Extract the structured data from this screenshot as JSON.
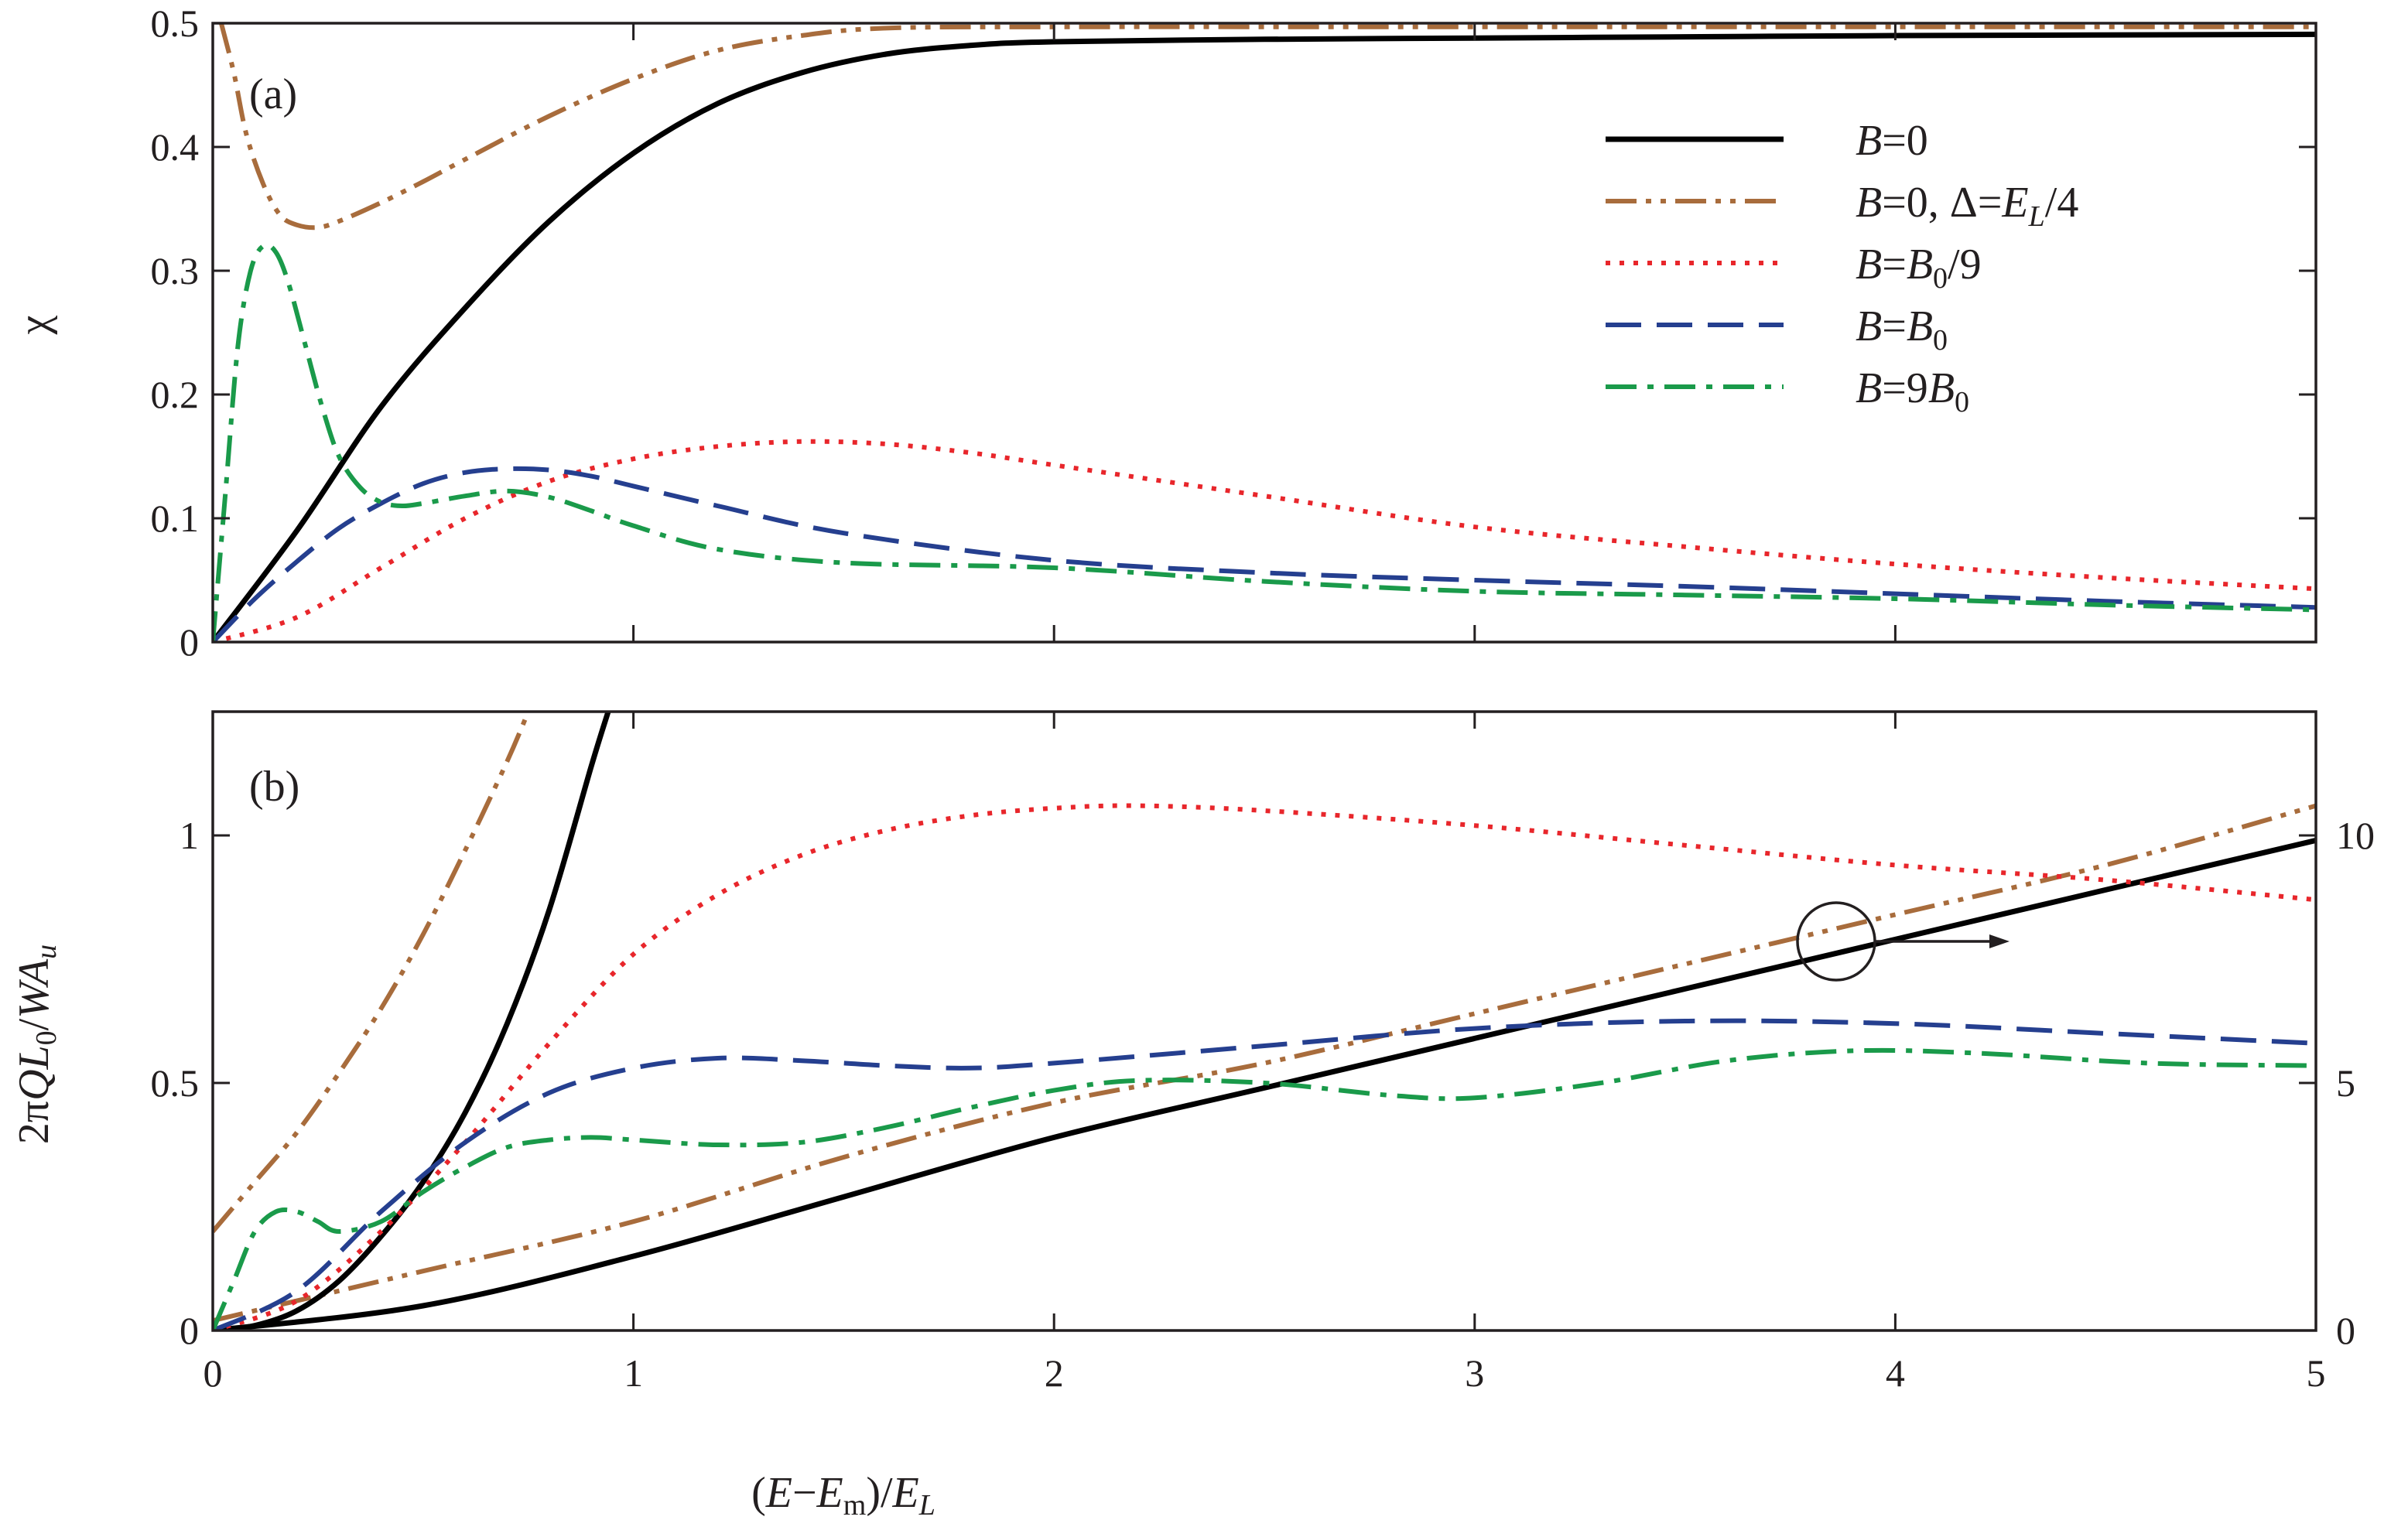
{
  "chart_data": [
    {
      "id": "a",
      "type": "line",
      "panel_label": "(a)",
      "xlabel": "(E−E_m)/E_L",
      "ylabel": "χ",
      "xlim": [
        0,
        5
      ],
      "ylim": [
        0,
        0.5
      ],
      "xticks": [
        0,
        1,
        2,
        3,
        4,
        5
      ],
      "yticks": [
        0,
        0.1,
        0.2,
        0.3,
        0.4,
        0.5
      ],
      "ytick_labels": [
        "0",
        "0.1",
        "0.2",
        "0.3",
        "0.4",
        "0.5"
      ],
      "legend_position": "top-right",
      "series": [
        {
          "name": "B=0",
          "legend": {
            "t1": "B",
            "t2": "=0"
          },
          "color": "#000000",
          "style": "solid",
          "x": [
            0,
            0.2,
            0.4,
            0.6,
            0.8,
            1.0,
            1.2,
            1.4,
            1.6,
            1.8,
            2.0,
            2.5,
            3.0,
            3.5,
            4.0,
            5.0
          ],
          "y": [
            0,
            0.09,
            0.19,
            0.27,
            0.34,
            0.395,
            0.435,
            0.46,
            0.475,
            0.482,
            0.485,
            0.487,
            0.488,
            0.489,
            0.49,
            0.491
          ]
        },
        {
          "name": "B=0, Δ=E_L/4",
          "legend": {
            "t1": "B",
            "t2": "=0, Δ=",
            "t3": "E",
            "t4": "L",
            "t5": "/4"
          },
          "color": "#a86c3c",
          "style": "dashdotdot",
          "x": [
            0.02,
            0.05,
            0.08,
            0.12,
            0.16,
            0.2,
            0.25,
            0.3,
            0.4,
            0.5,
            0.6,
            0.8,
            1.0,
            1.2,
            1.4,
            1.6,
            2.0,
            3.0,
            4.0,
            5.0
          ],
          "y": [
            0.5,
            0.46,
            0.41,
            0.37,
            0.345,
            0.337,
            0.335,
            0.34,
            0.355,
            0.372,
            0.39,
            0.425,
            0.455,
            0.478,
            0.49,
            0.496,
            0.497,
            0.497,
            0.497,
            0.497
          ]
        },
        {
          "name": "B=B_0/9",
          "legend": {
            "t1": "B",
            "t2": "=",
            "t3": "B",
            "t4": "0",
            "t5": "/9"
          },
          "color": "#e8262b",
          "style": "dotted",
          "x": [
            0,
            0.2,
            0.4,
            0.6,
            0.8,
            1.0,
            1.2,
            1.4,
            1.6,
            1.8,
            2.0,
            2.5,
            3.0,
            3.5,
            4.0,
            4.5,
            5.0
          ],
          "y": [
            0,
            0.02,
            0.06,
            0.1,
            0.13,
            0.148,
            0.158,
            0.162,
            0.16,
            0.153,
            0.143,
            0.118,
            0.093,
            0.077,
            0.063,
            0.052,
            0.043
          ]
        },
        {
          "name": "B=B_0",
          "legend": {
            "t1": "B",
            "t2": "=",
            "t3": "B",
            "t4": "0",
            "t5": ""
          },
          "color": "#253f8f",
          "style": "dashed",
          "x": [
            0,
            0.1,
            0.2,
            0.3,
            0.4,
            0.5,
            0.6,
            0.7,
            0.8,
            0.9,
            1.0,
            1.2,
            1.5,
            2.0,
            2.5,
            3.0,
            3.5,
            4.0,
            4.5,
            5.0
          ],
          "y": [
            0,
            0.035,
            0.065,
            0.092,
            0.112,
            0.128,
            0.137,
            0.14,
            0.139,
            0.134,
            0.126,
            0.11,
            0.088,
            0.066,
            0.056,
            0.05,
            0.045,
            0.039,
            0.033,
            0.028
          ]
        },
        {
          "name": "B=9B_0",
          "legend": {
            "t1": "B",
            "t2": "=9",
            "t3": "B",
            "t4": "0",
            "t5": ""
          },
          "color": "#1a9a4a",
          "style": "dashdot",
          "x": [
            0,
            0.03,
            0.06,
            0.09,
            0.12,
            0.15,
            0.18,
            0.22,
            0.26,
            0.3,
            0.35,
            0.4,
            0.45,
            0.5,
            0.6,
            0.7,
            0.8,
            0.9,
            1.0,
            1.2,
            1.5,
            2.0,
            2.5,
            3.0,
            3.5,
            4.0,
            4.5,
            5.0
          ],
          "y": [
            0,
            0.12,
            0.24,
            0.3,
            0.32,
            0.315,
            0.29,
            0.24,
            0.19,
            0.15,
            0.125,
            0.113,
            0.11,
            0.112,
            0.118,
            0.122,
            0.117,
            0.106,
            0.094,
            0.075,
            0.064,
            0.06,
            0.049,
            0.041,
            0.038,
            0.035,
            0.03,
            0.026
          ]
        }
      ]
    },
    {
      "id": "b",
      "type": "line",
      "panel_label": "(b)",
      "xlabel": "(E−E_m)/E_L",
      "ylabel": "2πQL_0/WA_u",
      "xlim": [
        0,
        5
      ],
      "ylim": [
        0,
        1.25
      ],
      "xticks": [
        0,
        1,
        2,
        3,
        4,
        5
      ],
      "yticks": [
        0,
        0.5,
        1
      ],
      "ytick_labels": [
        "0",
        "0.5",
        "1"
      ],
      "y2lim": [
        0,
        12.5
      ],
      "y2ticks": [
        0,
        5,
        10
      ],
      "y2tick_labels": [
        "0",
        "5",
        "10"
      ],
      "annotation": "circle with arrow: B=0 and B=0, Δ=E_L/4 curves read on right axis",
      "series": [
        {
          "name": "B=0",
          "axis": "right",
          "color": "#000000",
          "style": "solid",
          "x": [
            0,
            0.5,
            1.0,
            1.5,
            2.0,
            2.5,
            3.0,
            3.5,
            4.0,
            4.5,
            5.0
          ],
          "y": [
            0,
            0.5,
            1.5,
            2.7,
            3.9,
            4.9,
            5.9,
            6.9,
            7.9,
            8.9,
            9.9
          ]
        },
        {
          "name": "B=0, Δ=E_L/4",
          "axis": "right",
          "color": "#a86c3c",
          "style": "dashdotdot",
          "x": [
            0,
            0.5,
            1.0,
            1.5,
            2.0,
            2.5,
            3.0,
            3.5,
            4.0,
            4.5,
            5.0
          ],
          "y": [
            0.2,
            1.2,
            2.2,
            3.5,
            4.6,
            5.4,
            6.4,
            7.4,
            8.4,
            9.4,
            10.6
          ]
        },
        {
          "name": "B=0 (left)",
          "axis": "left",
          "color": "#000000",
          "style": "solid",
          "x": [
            0,
            0.1,
            0.2,
            0.3,
            0.4,
            0.5,
            0.6,
            0.7,
            0.8,
            0.9,
            0.94
          ],
          "y": [
            0,
            0.01,
            0.04,
            0.1,
            0.19,
            0.3,
            0.44,
            0.62,
            0.85,
            1.14,
            1.25
          ]
        },
        {
          "name": "B=0, Δ=E_L/4 (left)",
          "axis": "left",
          "color": "#a86c3c",
          "style": "dashdotdot",
          "x": [
            0,
            0.1,
            0.2,
            0.3,
            0.4,
            0.5,
            0.6,
            0.7,
            0.75
          ],
          "y": [
            0.2,
            0.3,
            0.4,
            0.52,
            0.65,
            0.8,
            0.97,
            1.15,
            1.25
          ]
        },
        {
          "name": "B=B_0/9",
          "axis": "left",
          "color": "#e8262b",
          "style": "dotted",
          "x": [
            0,
            0.2,
            0.4,
            0.6,
            0.8,
            1.0,
            1.2,
            1.4,
            1.6,
            1.8,
            2.0,
            2.2,
            2.5,
            3.0,
            3.5,
            4.0,
            4.5,
            5.0
          ],
          "y": [
            0,
            0.06,
            0.2,
            0.38,
            0.58,
            0.76,
            0.88,
            0.96,
            1.01,
            1.04,
            1.055,
            1.06,
            1.05,
            1.02,
            0.98,
            0.94,
            0.91,
            0.87
          ]
        },
        {
          "name": "B=B_0",
          "axis": "left",
          "color": "#253f8f",
          "style": "dashed",
          "x": [
            0,
            0.2,
            0.4,
            0.6,
            0.8,
            1.0,
            1.2,
            1.4,
            1.6,
            1.8,
            2.0,
            2.5,
            3.0,
            3.5,
            4.0,
            4.5,
            5.0
          ],
          "y": [
            0,
            0.08,
            0.24,
            0.38,
            0.48,
            0.53,
            0.55,
            0.545,
            0.535,
            0.53,
            0.54,
            0.575,
            0.61,
            0.625,
            0.62,
            0.6,
            0.58
          ]
        },
        {
          "name": "B=9B_0",
          "axis": "left",
          "color": "#1a9a4a",
          "style": "dashdot",
          "x": [
            0,
            0.05,
            0.1,
            0.15,
            0.2,
            0.25,
            0.3,
            0.4,
            0.5,
            0.6,
            0.7,
            0.8,
            0.9,
            1.0,
            1.2,
            1.4,
            1.6,
            1.8,
            2.0,
            2.2,
            2.5,
            2.8,
            3.0,
            3.3,
            3.6,
            3.9,
            4.2,
            4.6,
            5.0
          ],
          "y": [
            0,
            0.1,
            0.2,
            0.24,
            0.24,
            0.22,
            0.2,
            0.22,
            0.28,
            0.33,
            0.37,
            0.385,
            0.39,
            0.385,
            0.375,
            0.38,
            0.41,
            0.45,
            0.485,
            0.505,
            0.5,
            0.475,
            0.47,
            0.5,
            0.545,
            0.565,
            0.56,
            0.54,
            0.535
          ]
        }
      ]
    }
  ]
}
